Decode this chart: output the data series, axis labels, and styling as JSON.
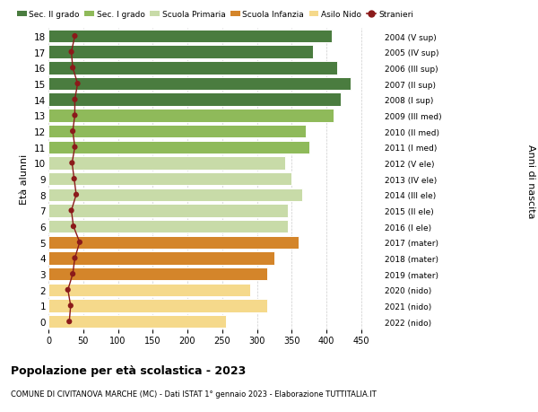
{
  "ages": [
    0,
    1,
    2,
    3,
    4,
    5,
    6,
    7,
    8,
    9,
    10,
    11,
    12,
    13,
    14,
    15,
    16,
    17,
    18
  ],
  "bar_values": [
    255,
    315,
    290,
    315,
    325,
    360,
    345,
    345,
    365,
    350,
    340,
    375,
    370,
    410,
    420,
    435,
    415,
    380,
    408
  ],
  "stranieri": [
    30,
    32,
    28,
    35,
    38,
    45,
    36,
    33,
    40,
    37,
    34,
    38,
    35,
    38,
    38,
    42,
    35,
    33,
    38
  ],
  "bar_colors": [
    "#f5d98b",
    "#f5d98b",
    "#f5d98b",
    "#d4852a",
    "#d4852a",
    "#d4852a",
    "#c8dba8",
    "#c8dba8",
    "#c8dba8",
    "#c8dba8",
    "#c8dba8",
    "#8fba5a",
    "#8fba5a",
    "#8fba5a",
    "#4a7c3f",
    "#4a7c3f",
    "#4a7c3f",
    "#4a7c3f",
    "#4a7c3f"
  ],
  "right_labels": [
    "2022 (nido)",
    "2021 (nido)",
    "2020 (nido)",
    "2019 (mater)",
    "2018 (mater)",
    "2017 (mater)",
    "2016 (I ele)",
    "2015 (II ele)",
    "2014 (III ele)",
    "2013 (IV ele)",
    "2012 (V ele)",
    "2011 (I med)",
    "2010 (II med)",
    "2009 (III med)",
    "2008 (I sup)",
    "2007 (II sup)",
    "2006 (III sup)",
    "2005 (IV sup)",
    "2004 (V sup)"
  ],
  "legend_labels": [
    "Sec. II grado",
    "Sec. I grado",
    "Scuola Primaria",
    "Scuola Infanzia",
    "Asilo Nido",
    "Stranieri"
  ],
  "legend_colors": [
    "#4a7c3f",
    "#8fba5a",
    "#c8dba8",
    "#d4852a",
    "#f5d98b",
    "#8b1a1a"
  ],
  "ylabel": "Età alunni",
  "right_ylabel": "Anni di nascita",
  "title": "Popolazione per età scolastica - 2023",
  "subtitle": "COMUNE DI CIVITANOVA MARCHE (MC) - Dati ISTAT 1° gennaio 2023 - Elaborazione TUTTITALIA.IT",
  "xlim_max": 480,
  "xticks": [
    0,
    50,
    100,
    150,
    200,
    250,
    300,
    350,
    400,
    450
  ],
  "stranieri_color": "#8b1a1a",
  "bg_color": "#ffffff",
  "bar_height": 0.82
}
